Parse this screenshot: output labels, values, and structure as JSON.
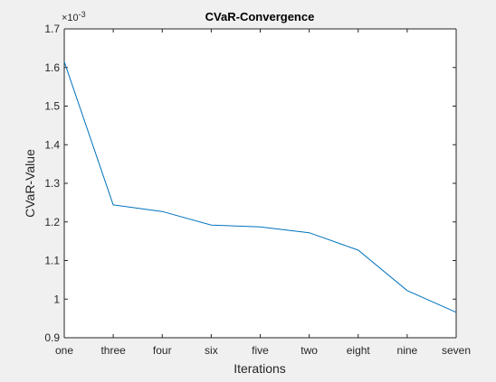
{
  "chart_data": {
    "type": "line",
    "title": "CVaR-Convergence",
    "xlabel": "Iterations",
    "ylabel": "CVaR-Value",
    "exponent_label": "×10",
    "exponent_power": "-3",
    "categories": [
      "one",
      "three",
      "four",
      "six",
      "five",
      "two",
      "eight",
      "nine",
      "seven"
    ],
    "y_ticks": [
      "0.9",
      "1",
      "1.1",
      "1.2",
      "1.3",
      "1.4",
      "1.5",
      "1.6",
      "1.7"
    ],
    "ylim": [
      0.9,
      1.7
    ],
    "series": [
      {
        "values": [
          1.615,
          1.244,
          1.227,
          1.192,
          1.187,
          1.172,
          1.127,
          1.022,
          0.966
        ]
      }
    ],
    "grid": false,
    "colors": {
      "line": "#0072bd",
      "axes": "#262626",
      "plot_bg": "#ffffff",
      "figure_bg": "#f0f0f0"
    }
  }
}
